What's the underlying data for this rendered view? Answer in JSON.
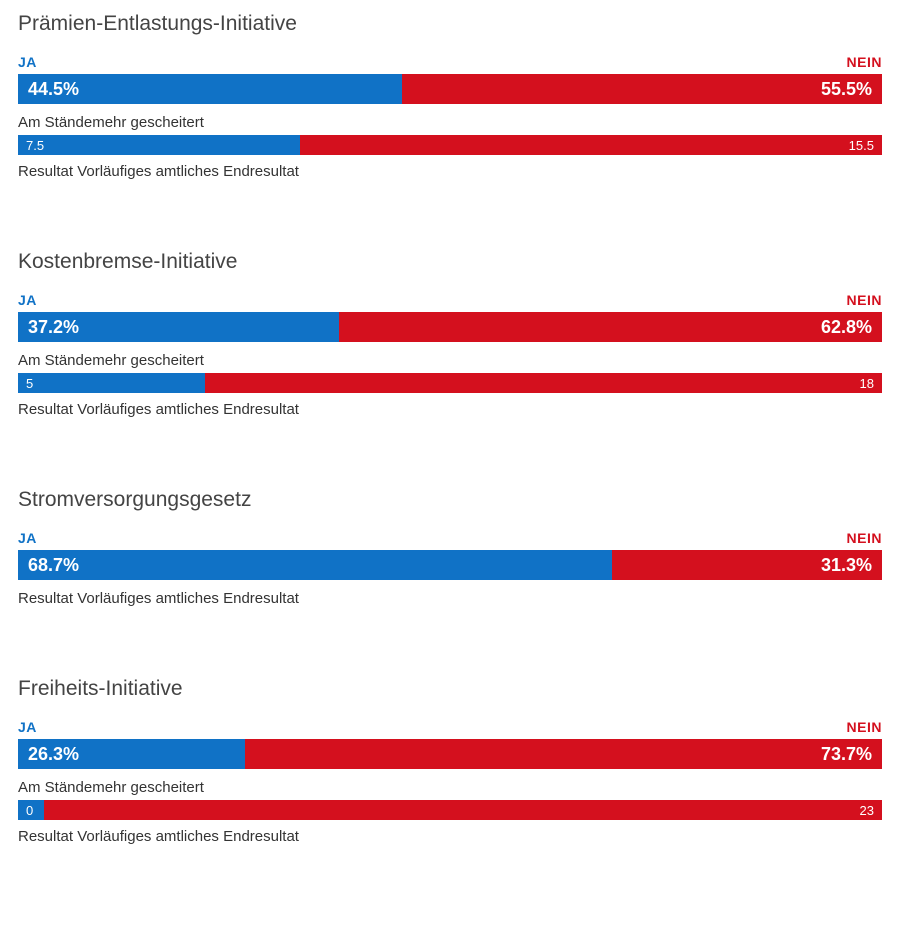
{
  "colors": {
    "ja": "#1072c6",
    "nein": "#d4101e",
    "text": "#333333",
    "title": "#444444",
    "bg": "#ffffff"
  },
  "labels": {
    "ja": "JA",
    "nein": "NEIN"
  },
  "initiatives": [
    {
      "title": "Prämien-Entlastungs-Initiative",
      "ja_pct": 44.5,
      "nein_pct": 55.5,
      "ja_display": "44.5%",
      "nein_display": "55.5%",
      "staende": {
        "label": "Am Ständemehr gescheitert",
        "ja": 7.5,
        "nein": 15.5,
        "ja_display": "7.5",
        "nein_display": "15.5",
        "ja_width_pct": 32.6,
        "nein_width_pct": 67.4
      },
      "result": "Resultat Vorläufiges amtliches Endresultat"
    },
    {
      "title": "Kostenbremse-Initiative",
      "ja_pct": 37.2,
      "nein_pct": 62.8,
      "ja_display": "37.2%",
      "nein_display": "62.8%",
      "staende": {
        "label": "Am Ständemehr gescheitert",
        "ja": 5,
        "nein": 18,
        "ja_display": "5",
        "nein_display": "18",
        "ja_width_pct": 21.7,
        "nein_width_pct": 78.3
      },
      "result": "Resultat Vorläufiges amtliches Endresultat"
    },
    {
      "title": "Stromversorgungsgesetz",
      "ja_pct": 68.7,
      "nein_pct": 31.3,
      "ja_display": "68.7%",
      "nein_display": "31.3%",
      "staende": null,
      "result": "Resultat Vorläufiges amtliches Endresultat"
    },
    {
      "title": "Freiheits-Initiative",
      "ja_pct": 26.3,
      "nein_pct": 73.7,
      "ja_display": "26.3%",
      "nein_display": "73.7%",
      "staende": {
        "label": "Am Ständemehr gescheitert",
        "ja": 0,
        "nein": 23,
        "ja_display": "0",
        "nein_display": "23",
        "ja_width_pct": 3,
        "nein_width_pct": 97
      },
      "result": "Resultat Vorläufiges amtliches Endresultat"
    }
  ]
}
